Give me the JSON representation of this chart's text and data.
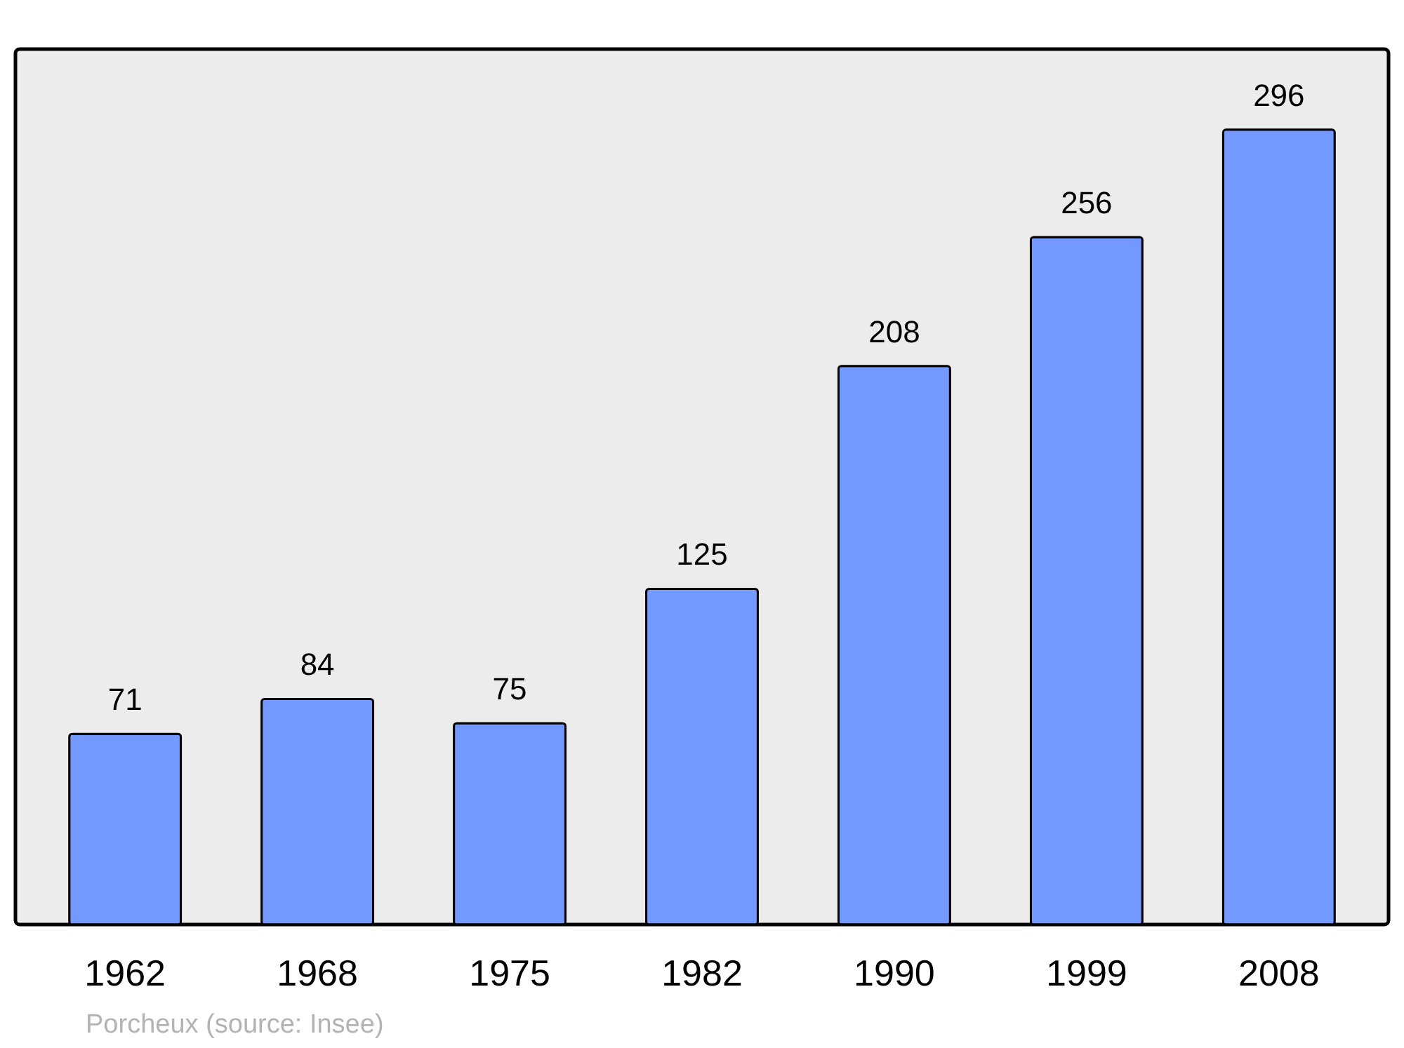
{
  "chart_data": {
    "type": "bar",
    "categories": [
      "1962",
      "1968",
      "1975",
      "1982",
      "1990",
      "1999",
      "2008"
    ],
    "values": [
      71,
      84,
      75,
      125,
      208,
      256,
      296
    ],
    "color": "#7399ff",
    "ylim": [
      0,
      326
    ],
    "data_labels": true,
    "grid": false,
    "annotations": [
      "Porcheux    (source: Insee)"
    ]
  }
}
